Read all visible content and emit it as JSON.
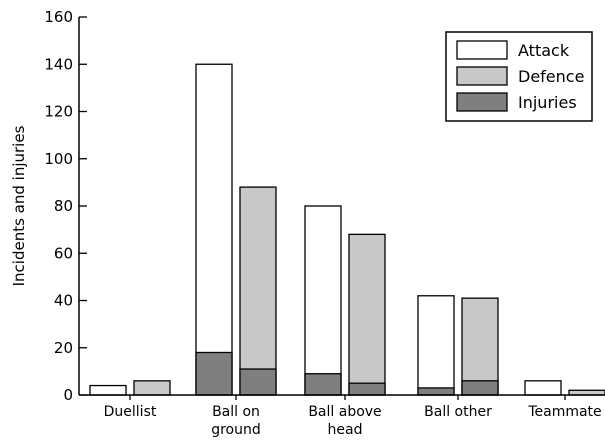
{
  "chart_data": {
    "type": "bar",
    "stacked_overlay": true,
    "ylabel": "Incidents and injuries",
    "ylim": [
      0,
      160
    ],
    "yticks": [
      0,
      20,
      40,
      60,
      80,
      100,
      120,
      140,
      160
    ],
    "categories": [
      [
        "Duellist"
      ],
      [
        "Ball on",
        "ground"
      ],
      [
        "Ball above",
        "head"
      ],
      [
        "Ball other"
      ],
      [
        "Teammate"
      ]
    ],
    "series": [
      {
        "name": "Attack",
        "values": [
          4,
          140,
          80,
          42,
          6
        ],
        "color": "#ffffff"
      },
      {
        "name": "Defence",
        "values": [
          6,
          88,
          68,
          41,
          2
        ],
        "color": "#c8c8c8"
      }
    ],
    "injuries": {
      "name": "Injuries",
      "color": "#7f7f7f",
      "attack": [
        0,
        18,
        9,
        3,
        0
      ],
      "defence": [
        0,
        11,
        5,
        6,
        0
      ]
    },
    "legend": [
      "Attack",
      "Defence",
      "Injuries"
    ],
    "legend_position": "top-right",
    "grid": false
  }
}
